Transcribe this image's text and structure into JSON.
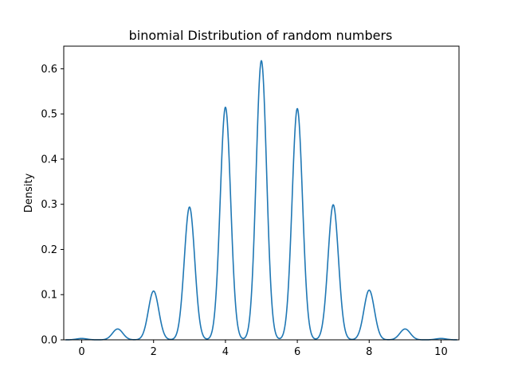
{
  "chart_data": {
    "type": "line",
    "title": "binomial Distribution of random numbers",
    "xlabel": "",
    "ylabel": "Density",
    "xlim": [
      -0.5,
      10.5
    ],
    "ylim": [
      0,
      0.65
    ],
    "x_ticks": [
      0,
      2,
      4,
      6,
      8,
      10
    ],
    "y_ticks": [
      0.0,
      0.1,
      0.2,
      0.3,
      0.4,
      0.5,
      0.6
    ],
    "x_tick_labels": [
      "0",
      "2",
      "4",
      "6",
      "8",
      "10"
    ],
    "y_tick_labels": [
      "0.0",
      "0.1",
      "0.2",
      "0.3",
      "0.4",
      "0.5",
      "0.6"
    ],
    "grid": false,
    "line_color": "#1f77b4",
    "series": [
      {
        "x": [
          0,
          1,
          2,
          3,
          4,
          5,
          6,
          7,
          8,
          9,
          10
        ],
        "values": [
          0.003,
          0.024,
          0.108,
          0.294,
          0.515,
          0.618,
          0.512,
          0.299,
          0.11,
          0.024,
          0.003
        ]
      }
    ]
  }
}
